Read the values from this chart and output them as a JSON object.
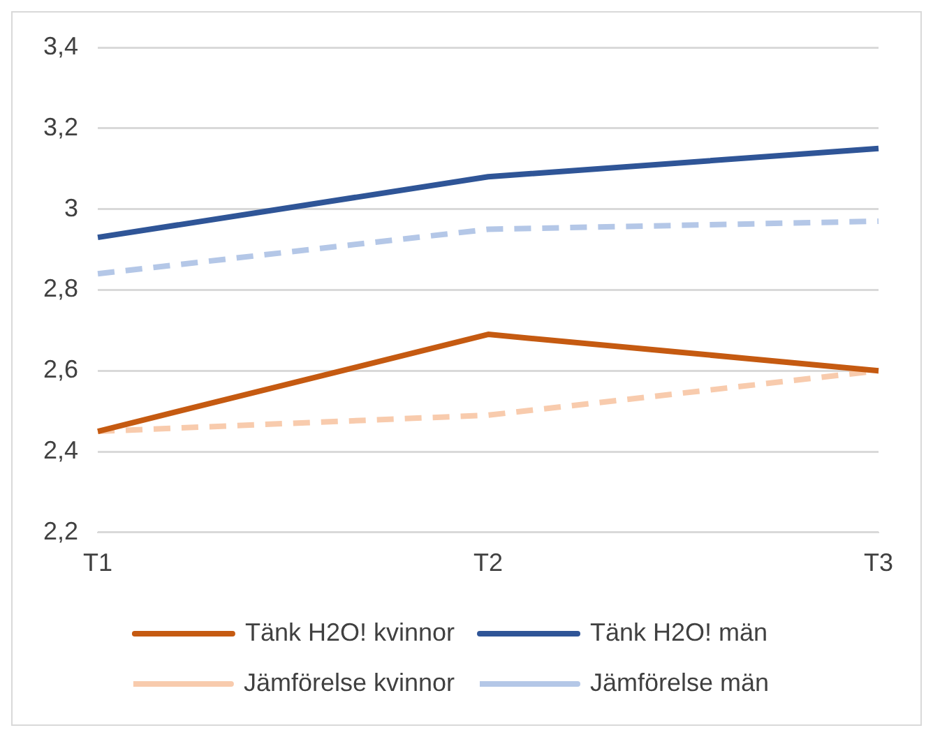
{
  "chart_data": {
    "type": "line",
    "categories": [
      "T1",
      "T2",
      "T3"
    ],
    "series": [
      {
        "name": "Tänk H2O! kvinnor",
        "color": "#c55a11",
        "values": [
          2.45,
          2.69,
          2.6
        ],
        "line_style": "solid"
      },
      {
        "name": "Tänk H2O! män",
        "color": "#2f5597",
        "values": [
          2.93,
          3.08,
          3.15
        ],
        "line_style": "solid"
      },
      {
        "name": "Jämförelse kvinnor",
        "color": "#f8cbad",
        "values": [
          2.45,
          2.49,
          2.6
        ],
        "line_style": "dashed"
      },
      {
        "name": "Jämförelse män",
        "color": "#b4c7e7",
        "values": [
          2.84,
          2.95,
          2.97
        ],
        "line_style": "dashed"
      }
    ],
    "ylim": [
      2.2,
      3.4
    ],
    "yticks": [
      {
        "value": 2.2,
        "label": "2,2"
      },
      {
        "value": 2.4,
        "label": "2,4"
      },
      {
        "value": 2.6,
        "label": "2,6"
      },
      {
        "value": 2.8,
        "label": "2,8"
      },
      3,
      {
        "value": 3.2,
        "label": "3,2"
      },
      {
        "value": 3.4,
        "label": "3,4"
      }
    ],
    "grid": "y",
    "legend": "bottom",
    "marker": "none"
  }
}
